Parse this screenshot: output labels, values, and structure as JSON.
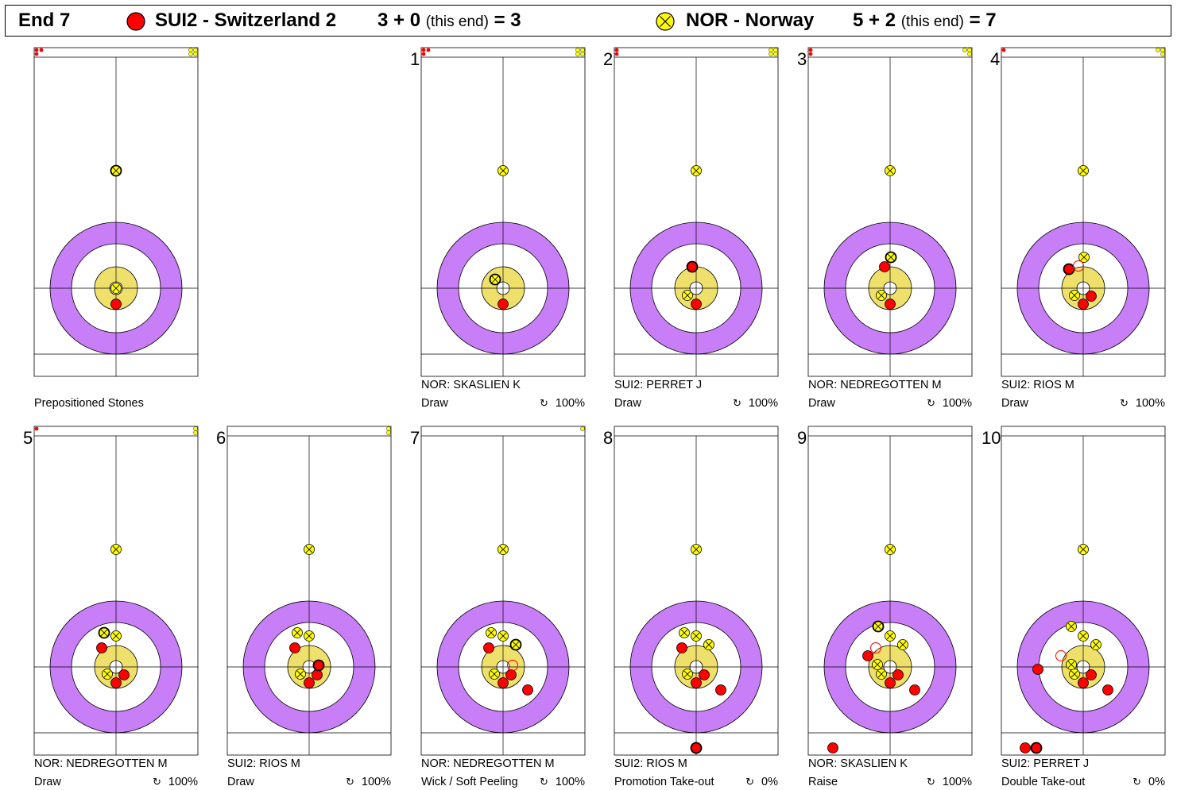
{
  "header": {
    "end_label": "End 7",
    "team1": {
      "code_name": "SUI2 - Switzerland 2",
      "score_prev": "3 + 0",
      "this_end": "(this end)",
      "total": "= 3"
    },
    "team2": {
      "code_name": "NOR - Norway",
      "score_prev": "5 + 2",
      "this_end": "(this end)",
      "total": "= 7"
    }
  },
  "colors": {
    "red_stone": "#ff0000",
    "yellow_stone": "#ffff00",
    "ring_outer": "#c77ef6",
    "ring_button": "#efe06c"
  },
  "sheets": [
    {
      "num": "",
      "player": "",
      "shot": "Prepositioned Stones",
      "percent": "",
      "bank_red": 3,
      "bank_yellow": 4,
      "stones": [
        {
          "t": "y",
          "x": 0,
          "y": 148,
          "m": true
        },
        {
          "t": "y",
          "x": 0,
          "y": 0
        },
        {
          "t": "r",
          "x": 0,
          "y": -20
        }
      ]
    },
    {
      "num": "1",
      "player": "NOR: SKASLIEN K",
      "shot": "Draw",
      "percent": "100%",
      "bank_red": 3,
      "bank_yellow": 4,
      "stones": [
        {
          "t": "y",
          "x": 0,
          "y": 148
        },
        {
          "t": "y",
          "x": -10,
          "y": 11,
          "m": true
        },
        {
          "t": "r",
          "x": 0,
          "y": -20
        }
      ]
    },
    {
      "num": "2",
      "player": "SUI2: PERRET J",
      "shot": "Draw",
      "percent": "100%",
      "bank_red": 2,
      "bank_yellow": 4,
      "stones": [
        {
          "t": "y",
          "x": 0,
          "y": 148
        },
        {
          "t": "y",
          "x": -11,
          "y": -9
        },
        {
          "t": "r",
          "x": 0,
          "y": -20
        },
        {
          "t": "r",
          "x": -5,
          "y": 27,
          "m": true
        }
      ]
    },
    {
      "num": "3",
      "player": "NOR: NEDREGOTTEN M",
      "shot": "Draw",
      "percent": "100%",
      "bank_red": 2,
      "bank_yellow": 3,
      "stones": [
        {
          "t": "y",
          "x": 0,
          "y": 148
        },
        {
          "t": "y",
          "x": -11,
          "y": -9
        },
        {
          "t": "r",
          "x": 0,
          "y": -20
        },
        {
          "t": "r",
          "x": -7,
          "y": 27
        },
        {
          "t": "y",
          "x": 1,
          "y": 39,
          "m": true
        }
      ]
    },
    {
      "num": "4",
      "player": "SUI2: RIOS M",
      "shot": "Draw",
      "percent": "100%",
      "bank_red": 1,
      "bank_yellow": 3,
      "stones": [
        {
          "t": "y",
          "x": 0,
          "y": 148
        },
        {
          "t": "y",
          "x": -11,
          "y": -9
        },
        {
          "t": "r",
          "x": 0,
          "y": -20
        },
        {
          "t": "r",
          "x": 10,
          "y": -10
        },
        {
          "t": "y",
          "x": 1,
          "y": 39
        },
        {
          "t": "r",
          "x": -18,
          "y": 24,
          "m": true
        },
        {
          "t": "rg",
          "x": -6,
          "y": 28
        }
      ]
    },
    {
      "num": "5",
      "player": "NOR: NEDREGOTTEN M",
      "shot": "Draw",
      "percent": "100%",
      "bank_red": 1,
      "bank_yellow": 2,
      "stones": [
        {
          "t": "y",
          "x": 0,
          "y": 148
        },
        {
          "t": "y",
          "x": -11,
          "y": -9
        },
        {
          "t": "r",
          "x": 0,
          "y": -20
        },
        {
          "t": "r",
          "x": 10,
          "y": -10
        },
        {
          "t": "y",
          "x": 0,
          "y": 39
        },
        {
          "t": "r",
          "x": -18,
          "y": 24
        },
        {
          "t": "y",
          "x": -15,
          "y": 43,
          "m": true
        }
      ]
    },
    {
      "num": "6",
      "player": "SUI2: RIOS M",
      "shot": "Draw",
      "percent": "100%",
      "bank_red": 0,
      "bank_yellow": 2,
      "stones": [
        {
          "t": "y",
          "x": 0,
          "y": 148
        },
        {
          "t": "y",
          "x": -11,
          "y": -9
        },
        {
          "t": "r",
          "x": 0,
          "y": -20
        },
        {
          "t": "r",
          "x": 10,
          "y": -10
        },
        {
          "t": "y",
          "x": 0,
          "y": 39
        },
        {
          "t": "r",
          "x": -18,
          "y": 24
        },
        {
          "t": "y",
          "x": -15,
          "y": 43
        },
        {
          "t": "r",
          "x": 12,
          "y": 2,
          "m": true
        }
      ]
    },
    {
      "num": "7",
      "player": "NOR: NEDREGOTTEN M",
      "shot": "Wick / Soft Peeling",
      "percent": "100%",
      "bank_red": 0,
      "bank_yellow": 1,
      "stones": [
        {
          "t": "y",
          "x": 0,
          "y": 148
        },
        {
          "t": "y",
          "x": -11,
          "y": -9
        },
        {
          "t": "r",
          "x": 0,
          "y": -20
        },
        {
          "t": "r",
          "x": 10,
          "y": -10
        },
        {
          "t": "y",
          "x": 0,
          "y": 39
        },
        {
          "t": "r",
          "x": -18,
          "y": 24
        },
        {
          "t": "y",
          "x": -15,
          "y": 43
        },
        {
          "t": "r",
          "x": 31,
          "y": -29
        },
        {
          "t": "y",
          "x": 16,
          "y": 28,
          "m": true
        },
        {
          "t": "rg",
          "x": 12,
          "y": 2
        }
      ]
    },
    {
      "num": "8",
      "player": "SUI2: RIOS M",
      "shot": "Promotion Take-out",
      "percent": "0%",
      "bank_red": 0,
      "bank_yellow": 0,
      "stones": [
        {
          "t": "y",
          "x": 0,
          "y": 148
        },
        {
          "t": "y",
          "x": -11,
          "y": -9
        },
        {
          "t": "r",
          "x": 0,
          "y": -20
        },
        {
          "t": "r",
          "x": 10,
          "y": -10
        },
        {
          "t": "y",
          "x": 0,
          "y": 39
        },
        {
          "t": "r",
          "x": -18,
          "y": 24
        },
        {
          "t": "y",
          "x": -15,
          "y": 43
        },
        {
          "t": "r",
          "x": 31,
          "y": -29
        },
        {
          "t": "y",
          "x": 16,
          "y": 28
        },
        {
          "t": "r",
          "x": 0,
          "y": -102,
          "m": true
        }
      ]
    },
    {
      "num": "9",
      "player": "NOR: SKASLIEN K",
      "shot": "Raise",
      "percent": "100%",
      "bank_red": 0,
      "bank_yellow": 0,
      "stones": [
        {
          "t": "y",
          "x": 0,
          "y": 148
        },
        {
          "t": "y",
          "x": -11,
          "y": -9
        },
        {
          "t": "r",
          "x": 0,
          "y": -20
        },
        {
          "t": "r",
          "x": 10,
          "y": -10
        },
        {
          "t": "y",
          "x": 0,
          "y": 39
        },
        {
          "t": "r",
          "x": -28,
          "y": 14
        },
        {
          "t": "y",
          "x": -16,
          "y": 3
        },
        {
          "t": "r",
          "x": 31,
          "y": -29
        },
        {
          "t": "y",
          "x": 16,
          "y": 28
        },
        {
          "t": "y",
          "x": -15,
          "y": 51,
          "m": true
        },
        {
          "t": "rg",
          "x": -18,
          "y": 24
        },
        {
          "t": "r",
          "x": -72,
          "y": -102
        }
      ]
    },
    {
      "num": "10",
      "player": "SUI2: PERRET J",
      "shot": "Double Take-out",
      "percent": "0%",
      "bank_red": 0,
      "bank_yellow": 0,
      "stones": [
        {
          "t": "y",
          "x": 0,
          "y": 148
        },
        {
          "t": "y",
          "x": -11,
          "y": -9
        },
        {
          "t": "r",
          "x": 0,
          "y": -20
        },
        {
          "t": "r",
          "x": 10,
          "y": -10
        },
        {
          "t": "y",
          "x": 0,
          "y": 39
        },
        {
          "t": "y",
          "x": -15,
          "y": 3
        },
        {
          "t": "r",
          "x": 31,
          "y": -29
        },
        {
          "t": "y",
          "x": 16,
          "y": 28
        },
        {
          "t": "y",
          "x": -15,
          "y": 51
        },
        {
          "t": "r",
          "x": -57,
          "y": -3
        },
        {
          "t": "rg",
          "x": -28,
          "y": 14
        },
        {
          "t": "r",
          "x": -73,
          "y": -102
        },
        {
          "t": "r",
          "x": -59,
          "y": -102,
          "m": true
        }
      ]
    }
  ]
}
